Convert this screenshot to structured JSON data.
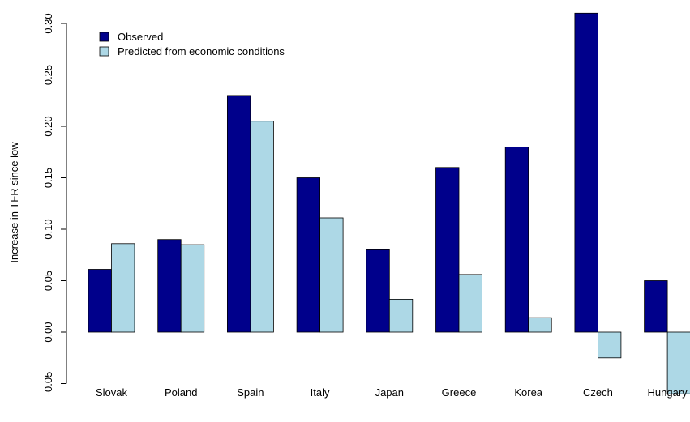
{
  "chart_data": {
    "type": "bar",
    "title": "",
    "xlabel": "",
    "ylabel": "Increase in TFR since low",
    "ylim": [
      -0.06,
      0.31
    ],
    "yticks": [
      "-0.05",
      "0.00",
      "0.05",
      "0.10",
      "0.15",
      "0.20",
      "0.25",
      "0.30"
    ],
    "categories": [
      "Slovak",
      "Poland",
      "Spain",
      "Italy",
      "Japan",
      "Greece",
      "Korea",
      "Czech",
      "Hungary"
    ],
    "series": [
      {
        "name": "Observed",
        "color": "#00008b",
        "values": [
          0.061,
          0.09,
          0.23,
          0.15,
          0.08,
          0.16,
          0.18,
          0.31,
          0.05
        ]
      },
      {
        "name": "Predicted from economic conditions",
        "color": "#add8e6",
        "values": [
          0.086,
          0.085,
          0.205,
          0.111,
          0.032,
          0.056,
          0.014,
          -0.025,
          -0.06
        ]
      }
    ],
    "grid": false,
    "legend": "top-left"
  }
}
